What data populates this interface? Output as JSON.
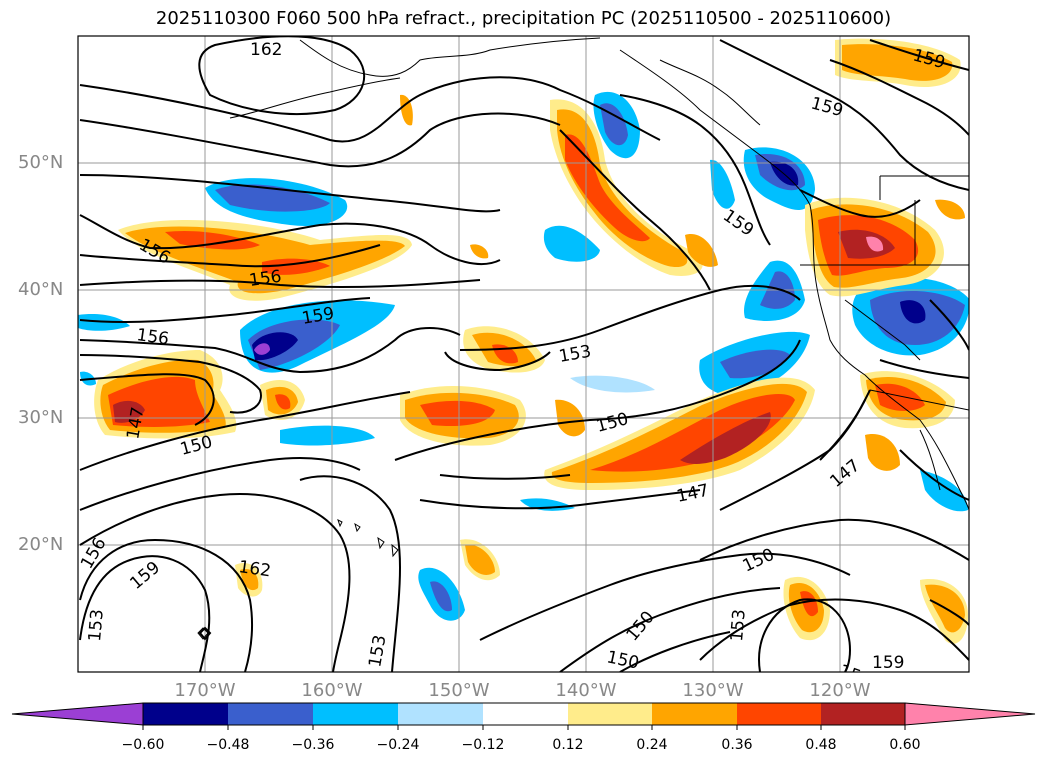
{
  "title": "2025110300 F060 500 hPa refract., precipitation PC (2025110500 - 2025110600)",
  "lat_labels": [
    "50°N",
    "40°N",
    "30°N",
    "20°N"
  ],
  "lon_labels": [
    "170°W",
    "160°W",
    "150°W",
    "140°W",
    "130°W",
    "120°W"
  ],
  "colorbar": {
    "labels": [
      "−0.60",
      "−0.48",
      "−0.36",
      "−0.24",
      "−0.12",
      "0.12",
      "0.24",
      "0.36",
      "0.48",
      "0.60"
    ],
    "colors": [
      "#9b3fd4",
      "#00008b",
      "#3a5fcd",
      "#00bfff",
      "#b0e2ff",
      "#ffffff",
      "#ffec8b",
      "#ffa500",
      "#ff4500",
      "#b22222",
      "#ff82ab"
    ]
  },
  "contour_labels": [
    "162",
    "159",
    "156",
    "153",
    "150",
    "147"
  ],
  "colors": {
    "grid": "#999999",
    "coast": "#000000",
    "contour": "#000000"
  }
}
